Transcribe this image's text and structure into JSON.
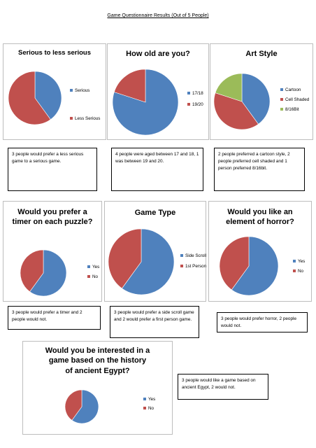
{
  "page_title": "Game Questionnaire Results (Out of 5 People)",
  "colors": {
    "blue": "#4F81BD",
    "red": "#C0504D",
    "green": "#9BBB59"
  },
  "chart_data": [
    {
      "type": "pie",
      "title": "Serious to less serious",
      "categories": [
        "Serious",
        "Less Serious"
      ],
      "values": [
        2,
        3
      ],
      "colors": [
        "#4F81BD",
        "#C0504D"
      ],
      "legend": "right"
    },
    {
      "type": "pie",
      "title": "How old are you?",
      "categories": [
        "17/18",
        "19/20"
      ],
      "values": [
        4,
        1
      ],
      "colors": [
        "#4F81BD",
        "#C0504D"
      ],
      "legend": "right"
    },
    {
      "type": "pie",
      "title": "Art Style",
      "categories": [
        "Cartoon",
        "Cell Shaded",
        "8/16Bit"
      ],
      "values": [
        2,
        2,
        1
      ],
      "colors": [
        "#4F81BD",
        "#C0504D",
        "#9BBB59"
      ],
      "legend": "right"
    },
    {
      "type": "pie",
      "title": "Would you prefer a timer on each puzzle?",
      "categories": [
        "Yes",
        "No"
      ],
      "values": [
        3,
        2
      ],
      "colors": [
        "#4F81BD",
        "#C0504D"
      ],
      "legend": "right"
    },
    {
      "type": "pie",
      "title": "Game Type",
      "categories": [
        "Side Scroll",
        "1st Person"
      ],
      "values": [
        3,
        2
      ],
      "colors": [
        "#4F81BD",
        "#C0504D"
      ],
      "legend": "right"
    },
    {
      "type": "pie",
      "title": "Would you like an element of horror?",
      "categories": [
        "Yes",
        "No"
      ],
      "values": [
        3,
        2
      ],
      "colors": [
        "#4F81BD",
        "#C0504D"
      ],
      "legend": "right"
    },
    {
      "type": "pie",
      "title": "Would you be interested in a game based on the history of ancient Egypt?",
      "categories": [
        "Yes",
        "No"
      ],
      "values": [
        3,
        2
      ],
      "colors": [
        "#4F81BD",
        "#C0504D"
      ],
      "legend": "right"
    }
  ],
  "notes": [
    "3 people would prefer a less serious game to a serious game.",
    "4 people were aged between 17 and 18, 1 was between 19 and 20.",
    "2 people preferred a cartoon style, 2 people preferred cell shaded and 1 person preferred 8/16bit.",
    "3 people would prefer a timer and 2 people would not.",
    "3 people would prefer a side scroll game and 2 would prefer a first person game.",
    "3 people would prefer horror, 2 people would not.",
    "3 people would like a game based on ancient Egypt, 2 would not."
  ]
}
